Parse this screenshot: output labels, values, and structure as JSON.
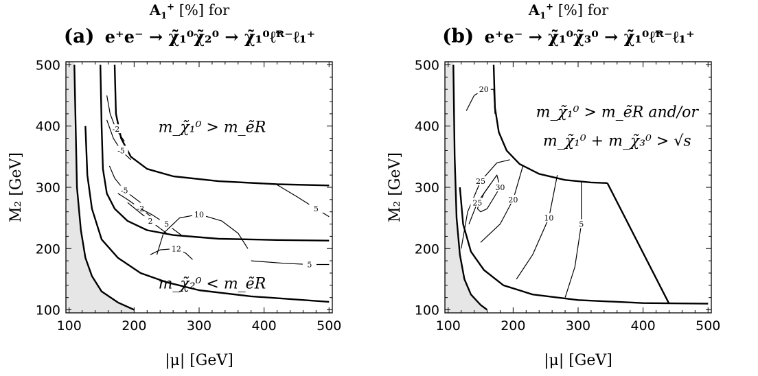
{
  "chart_data": [
    {
      "type": "contour",
      "panel_label": "(a)",
      "title_line1": "A₁⁺ [%] for",
      "title_line2": "e⁺e⁻ → χ̃₁⁰χ̃₂⁰ → χ̃₁⁰ℓ̃ᴿ⁻ℓ₁⁺",
      "xlabel": "|μ| [GeV]",
      "ylabel": "M₂ [GeV]",
      "xlim": [
        95,
        505
      ],
      "ylim": [
        95,
        505
      ],
      "xticks": [
        "100",
        "200",
        "300",
        "400",
        "500"
      ],
      "yticks": [
        "100",
        "200",
        "300",
        "400",
        "500"
      ],
      "excluded_region_color": "#e6e6e6",
      "boundaries": [
        {
          "name": "kinematic-limit",
          "points": [
            [
              108,
              500
            ],
            [
              112,
              300
            ],
            [
              118,
              230
            ],
            [
              125,
              185
            ],
            [
              135,
              155
            ],
            [
              150,
              130
            ],
            [
              175,
              112
            ],
            [
              200,
              100
            ]
          ]
        },
        {
          "name": "upper-boundary",
          "points": [
            [
              148,
              500
            ],
            [
              150,
              400
            ],
            [
              152,
              330
            ],
            [
              158,
              290
            ],
            [
              170,
              265
            ],
            [
              190,
              245
            ],
            [
              220,
              230
            ],
            [
              260,
              222
            ],
            [
              330,
              216
            ],
            [
              420,
              214
            ],
            [
              500,
              213
            ]
          ]
        },
        {
          "name": "lower-boundary",
          "points": [
            [
              125,
              400
            ],
            [
              128,
              320
            ],
            [
              135,
              265
            ],
            [
              150,
              215
            ],
            [
              175,
              185
            ],
            [
              210,
              160
            ],
            [
              250,
              145
            ],
            [
              300,
              132
            ],
            [
              380,
              122
            ],
            [
              500,
              113
            ]
          ]
        },
        {
          "name": "upper-right-boundary",
          "points": [
            [
              170,
              500
            ],
            [
              172,
              420
            ],
            [
              180,
              380
            ],
            [
              195,
              350
            ],
            [
              220,
              330
            ],
            [
              260,
              318
            ],
            [
              330,
              310
            ],
            [
              420,
              305
            ],
            [
              500,
              303
            ]
          ]
        }
      ],
      "contours": [
        {
          "label": "-2",
          "points": [
            [
              158,
              450
            ],
            [
              163,
              420
            ],
            [
              172,
              395
            ],
            [
              185,
              375
            ]
          ]
        },
        {
          "label": "-5",
          "points": [
            [
              158,
              410
            ],
            [
              168,
              380
            ],
            [
              180,
              360
            ],
            [
              195,
              345
            ]
          ]
        },
        {
          "label": "-5",
          "points": [
            [
              162,
              335
            ],
            [
              170,
              315
            ],
            [
              185,
              295
            ],
            [
              210,
              275
            ]
          ]
        },
        {
          "label": "-2",
          "points": [
            [
              175,
              290
            ],
            [
              190,
              280
            ],
            [
              210,
              265
            ],
            [
              235,
              245
            ]
          ]
        },
        {
          "label": "2",
          "points": [
            [
              190,
              275
            ],
            [
              205,
              262
            ],
            [
              225,
              245
            ],
            [
              250,
              225
            ]
          ]
        },
        {
          "label": "5",
          "points": [
            [
              210,
              265
            ],
            [
              228,
              255
            ],
            [
              250,
              240
            ],
            [
              275,
              220
            ]
          ]
        },
        {
          "label": "10",
          "points": [
            [
              235,
              190
            ],
            [
              245,
              225
            ],
            [
              270,
              250
            ],
            [
              300,
              256
            ],
            [
              335,
              245
            ],
            [
              360,
              225
            ],
            [
              375,
              200
            ]
          ]
        },
        {
          "label": "12",
          "points": [
            [
              225,
              190
            ],
            [
              240,
              198
            ],
            [
              265,
              200
            ],
            [
              280,
              192
            ],
            [
              290,
              182
            ]
          ]
        },
        {
          "label": "5",
          "points": [
            [
              420,
              304
            ],
            [
              450,
              285
            ],
            [
              480,
              265
            ],
            [
              500,
              252
            ]
          ]
        },
        {
          "label": "5",
          "points": [
            [
              380,
              180
            ],
            [
              430,
              176
            ],
            [
              470,
              174
            ],
            [
              500,
              174
            ]
          ]
        }
      ],
      "region_labels": [
        {
          "text": "m_χ̃₁⁰ > m_ẽR",
          "x": 320,
          "y": 390
        },
        {
          "text": "m_χ̃₂⁰ < m_ẽR",
          "x": 320,
          "y": 135
        }
      ]
    },
    {
      "type": "contour",
      "panel_label": "(b)",
      "title_line1": "A₁⁺ [%] for",
      "title_line2": "e⁺e⁻ → χ̃₁⁰χ̃₃⁰ → χ̃₁⁰ℓ̃ᴿ⁻ℓ₁⁺",
      "xlabel": "|μ| [GeV]",
      "ylabel": "M₂ [GeV]",
      "xlim": [
        95,
        505
      ],
      "ylim": [
        95,
        505
      ],
      "xticks": [
        "100",
        "200",
        "300",
        "400",
        "500"
      ],
      "yticks": [
        "100",
        "200",
        "300",
        "400",
        "500"
      ],
      "excluded_region_color": "#e6e6e6",
      "boundaries": [
        {
          "name": "kinematic-limit",
          "points": [
            [
              108,
              500
            ],
            [
              110,
              350
            ],
            [
              113,
              250
            ],
            [
              118,
              190
            ],
            [
              125,
              150
            ],
            [
              135,
              125
            ],
            [
              150,
              108
            ],
            [
              160,
              100
            ]
          ]
        },
        {
          "name": "lower-boundary",
          "points": [
            [
              118,
              300
            ],
            [
              123,
              240
            ],
            [
              135,
              195
            ],
            [
              155,
              165
            ],
            [
              185,
              140
            ],
            [
              230,
              125
            ],
            [
              300,
              116
            ],
            [
              400,
              111
            ],
            [
              500,
              110
            ]
          ]
        },
        {
          "name": "upper-boundary",
          "points": [
            [
              170,
              500
            ],
            [
              172,
              430
            ],
            [
              178,
              390
            ],
            [
              190,
              360
            ],
            [
              210,
              338
            ],
            [
              240,
              322
            ],
            [
              280,
              312
            ],
            [
              320,
              308
            ],
            [
              345,
              307
            ]
          ]
        },
        {
          "name": "excluded-diagonal",
          "points": [
            [
              345,
              307
            ],
            [
              440,
              110
            ]
          ]
        }
      ],
      "contours": [
        {
          "label": "20",
          "points": [
            [
              128,
              425
            ],
            [
              140,
              450
            ],
            [
              155,
              460
            ],
            [
              170,
              460
            ],
            [
              172,
              420
            ]
          ]
        },
        {
          "label": "25",
          "points": [
            [
              120,
              200
            ],
            [
              130,
              260
            ],
            [
              150,
              310
            ],
            [
              175,
              340
            ],
            [
              195,
              345
            ]
          ]
        },
        {
          "label": "30",
          "points": [
            [
              145,
              265
            ],
            [
              155,
              290
            ],
            [
              175,
              320
            ],
            [
              180,
              300
            ],
            [
              160,
              265
            ],
            [
              150,
              260
            ],
            [
              145,
              265
            ]
          ]
        },
        {
          "label": "25",
          "points": [
            [
              132,
              240
            ],
            [
              145,
              275
            ],
            [
              165,
              305
            ]
          ]
        },
        {
          "label": "20",
          "points": [
            [
              150,
              210
            ],
            [
              180,
              240
            ],
            [
              200,
              280
            ],
            [
              215,
              335
            ]
          ]
        },
        {
          "label": "10",
          "points": [
            [
              205,
              150
            ],
            [
              230,
              190
            ],
            [
              255,
              250
            ],
            [
              268,
              320
            ]
          ]
        },
        {
          "label": "5",
          "points": [
            [
              280,
              120
            ],
            [
              295,
              170
            ],
            [
              305,
              240
            ],
            [
              305,
              310
            ]
          ]
        }
      ],
      "region_labels": [
        {
          "text": "m_χ̃₁⁰ > m_ẽR  and/or",
          "x": 360,
          "y": 415
        },
        {
          "text": "m_χ̃₁⁰ + m_χ̃₃⁰ > √s",
          "x": 360,
          "y": 368
        }
      ]
    }
  ]
}
